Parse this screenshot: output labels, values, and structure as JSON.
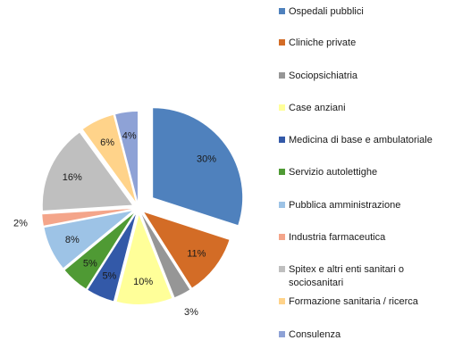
{
  "chart_data": {
    "type": "pie",
    "exploded": true,
    "legend": "right",
    "slices": [
      {
        "name": "Ospedali pubblici",
        "value": 30,
        "label": "30%",
        "color": "#4F81BD"
      },
      {
        "name": "Cliniche private",
        "value": 11,
        "label": "11%",
        "color": "#D36C26"
      },
      {
        "name": "Sociopsichiatria",
        "value": 3,
        "label": "3%",
        "color": "#969696"
      },
      {
        "name": "Case anziani",
        "value": 10,
        "label": "10%",
        "color": "#FFFF99"
      },
      {
        "name": "Medicina di base e ambulatoriale",
        "value": 5,
        "label": "5%",
        "color": "#3359A8"
      },
      {
        "name": "Servizio autolettighe",
        "value": 5,
        "label": "5%",
        "color": "#4F9A34"
      },
      {
        "name": "Pubblica amministrazione",
        "value": 8,
        "label": "8%",
        "color": "#9DC3E6"
      },
      {
        "name": "Industria farmaceutica",
        "value": 2,
        "label": "2%",
        "color": "#F4A58A"
      },
      {
        "name": "Spitex e altri enti sanitari o sociosanitari",
        "value": 16,
        "label": "16%",
        "color": "#BFBFBF"
      },
      {
        "name": "Formazione sanitaria / ricerca",
        "value": 6,
        "label": "6%",
        "color": "#FFD38A"
      },
      {
        "name": "Consulenza",
        "value": 4,
        "label": "4%",
        "color": "#8EA2D6"
      }
    ]
  }
}
